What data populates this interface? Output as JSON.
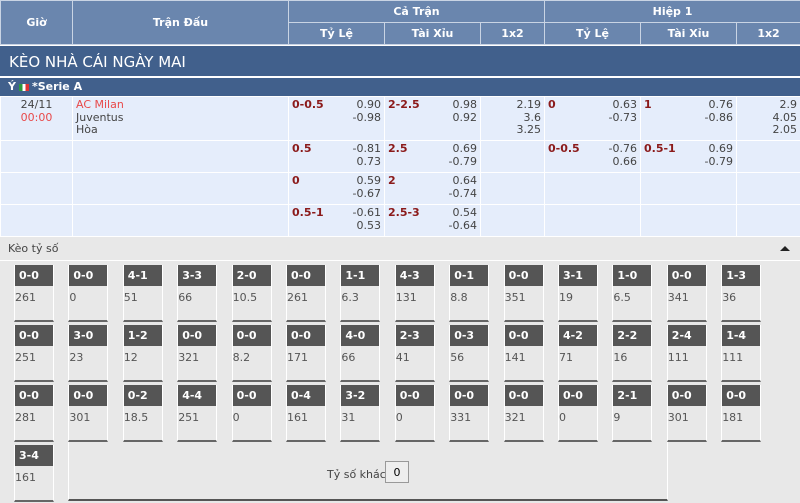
{
  "header": {
    "gio": "Giờ",
    "tran_dau": "Trận Đấu",
    "ca_tran": "Cả Trận",
    "hiep1": "Hiệp 1",
    "ty_le": "Tỷ Lệ",
    "tai_xiu": "Tài Xỉu",
    "x12": "1x2"
  },
  "section_title": "KÈO NHÀ CÁI NGÀY MAI",
  "league": {
    "country": "Ý",
    "name": "*Serie A"
  },
  "match": {
    "date": "24/11",
    "time": "00:00",
    "home": "AC Milan",
    "away": "Juventus",
    "draw": "Hòa"
  },
  "rows": [
    {
      "ft_hc": "0-0.5",
      "ft_hc_o": [
        "0.90",
        "-0.98"
      ],
      "ft_ou": "2-2.5",
      "ft_ou_o": [
        "0.98",
        "0.92"
      ],
      "ft_1x2": [
        "2.19",
        "3.6",
        "3.25"
      ],
      "h1_hc": "0",
      "h1_hc_o": [
        "0.63",
        "-0.73"
      ],
      "h1_ou": "1",
      "h1_ou_o": [
        "0.76",
        "-0.86"
      ],
      "h1_1x2": [
        "2.9",
        "4.05",
        "2.05"
      ]
    },
    {
      "ft_hc": "0.5",
      "ft_hc_o": [
        "-0.81",
        "0.73"
      ],
      "ft_ou": "2.5",
      "ft_ou_o": [
        "0.69",
        "-0.79"
      ],
      "h1_hc": "0-0.5",
      "h1_hc_o": [
        "-0.76",
        "0.66"
      ],
      "h1_ou": "0.5-1",
      "h1_ou_o": [
        "0.69",
        "-0.79"
      ]
    },
    {
      "ft_hc": "0",
      "ft_hc_o": [
        "0.59",
        "-0.67"
      ],
      "ft_ou": "2",
      "ft_ou_o": [
        "0.64",
        "-0.74"
      ]
    },
    {
      "ft_hc": "0.5-1",
      "ft_hc_o": [
        "-0.61",
        "0.53"
      ],
      "ft_ou": "2.5-3",
      "ft_ou_o": [
        "0.54",
        "-0.64"
      ]
    }
  ],
  "correct_score": {
    "title": "Kèo tỷ số",
    "cells": [
      [
        [
          "0-0",
          "261"
        ],
        [
          "0-0",
          "0"
        ],
        [
          "4-1",
          "51"
        ],
        [
          "3-3",
          "66"
        ],
        [
          "2-0",
          "10.5"
        ],
        [
          "0-0",
          "261"
        ],
        [
          "1-1",
          "6.3"
        ],
        [
          "4-3",
          "131"
        ],
        [
          "0-1",
          "8.8"
        ],
        [
          "0-0",
          "351"
        ],
        [
          "3-1",
          "19"
        ],
        [
          "1-0",
          "6.5"
        ],
        [
          "0-0",
          "341"
        ],
        [
          "1-3",
          "36"
        ]
      ],
      [
        [
          "0-0",
          "251"
        ],
        [
          "3-0",
          "23"
        ],
        [
          "1-2",
          "12"
        ],
        [
          "0-0",
          "321"
        ],
        [
          "0-0",
          "8.2"
        ],
        [
          "0-0",
          "171"
        ],
        [
          "4-0",
          "66"
        ],
        [
          "2-3",
          "41"
        ],
        [
          "0-3",
          "56"
        ],
        [
          "0-0",
          "141"
        ],
        [
          "4-2",
          "71"
        ],
        [
          "2-2",
          "16"
        ],
        [
          "2-4",
          "111"
        ],
        [
          "1-4",
          "111"
        ]
      ],
      [
        [
          "0-0",
          "281"
        ],
        [
          "0-0",
          "301"
        ],
        [
          "0-2",
          "18.5"
        ],
        [
          "4-4",
          "251"
        ],
        [
          "0-0",
          "0"
        ],
        [
          "0-4",
          "161"
        ],
        [
          "3-2",
          "31"
        ],
        [
          "0-0",
          "0"
        ],
        [
          "0-0",
          "331"
        ],
        [
          "0-0",
          "321"
        ],
        [
          "0-0",
          "0"
        ],
        [
          "2-1",
          "9"
        ],
        [
          "0-0",
          "301"
        ],
        [
          "0-0",
          "181"
        ]
      ],
      [
        [
          "3-4",
          "161"
        ]
      ]
    ],
    "other_label": "Tỷ số khác",
    "other_value": "0"
  }
}
